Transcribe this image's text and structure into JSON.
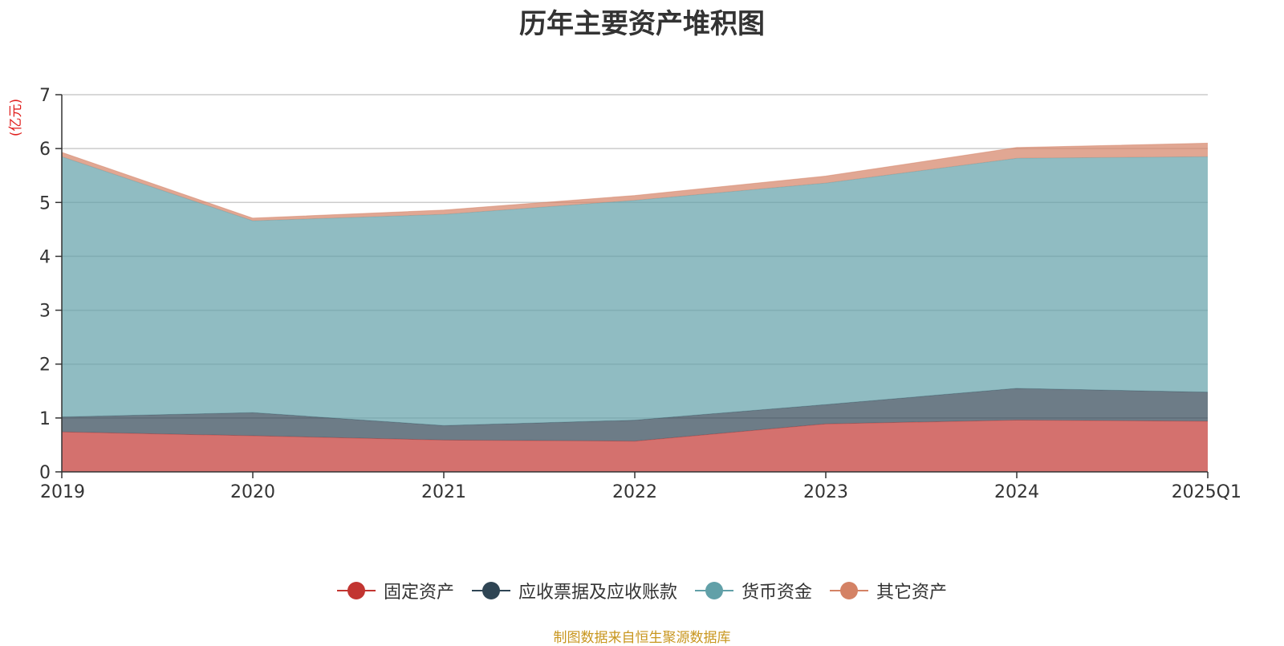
{
  "chart_data": {
    "type": "area",
    "stacked": true,
    "title": "历年主要资产堆积图",
    "unit_label": "(亿元)",
    "categories": [
      "2019",
      "2020",
      "2021",
      "2022",
      "2023",
      "2024",
      "2025Q1"
    ],
    "ylim": [
      0,
      7
    ],
    "yticks": [
      "0",
      "1",
      "2",
      "3",
      "4",
      "5",
      "6",
      "7"
    ],
    "grid": true,
    "legend_position": "bottom",
    "series": [
      {
        "name": "固定资产",
        "color": "#c23531",
        "values": [
          0.74,
          0.67,
          0.59,
          0.57,
          0.89,
          0.96,
          0.94
        ]
      },
      {
        "name": "应收票据及应收账款",
        "color": "#2f4554",
        "values": [
          0.28,
          0.43,
          0.27,
          0.39,
          0.36,
          0.59,
          0.54
        ]
      },
      {
        "name": "货币资金",
        "color": "#61a0a8",
        "values": [
          4.83,
          3.56,
          3.92,
          4.08,
          4.11,
          4.27,
          4.37
        ]
      },
      {
        "name": "其它资产",
        "color": "#d48265",
        "values": [
          0.08,
          0.05,
          0.08,
          0.09,
          0.13,
          0.2,
          0.25
        ]
      }
    ]
  },
  "source_note": "制图数据来自恒生聚源数据库"
}
